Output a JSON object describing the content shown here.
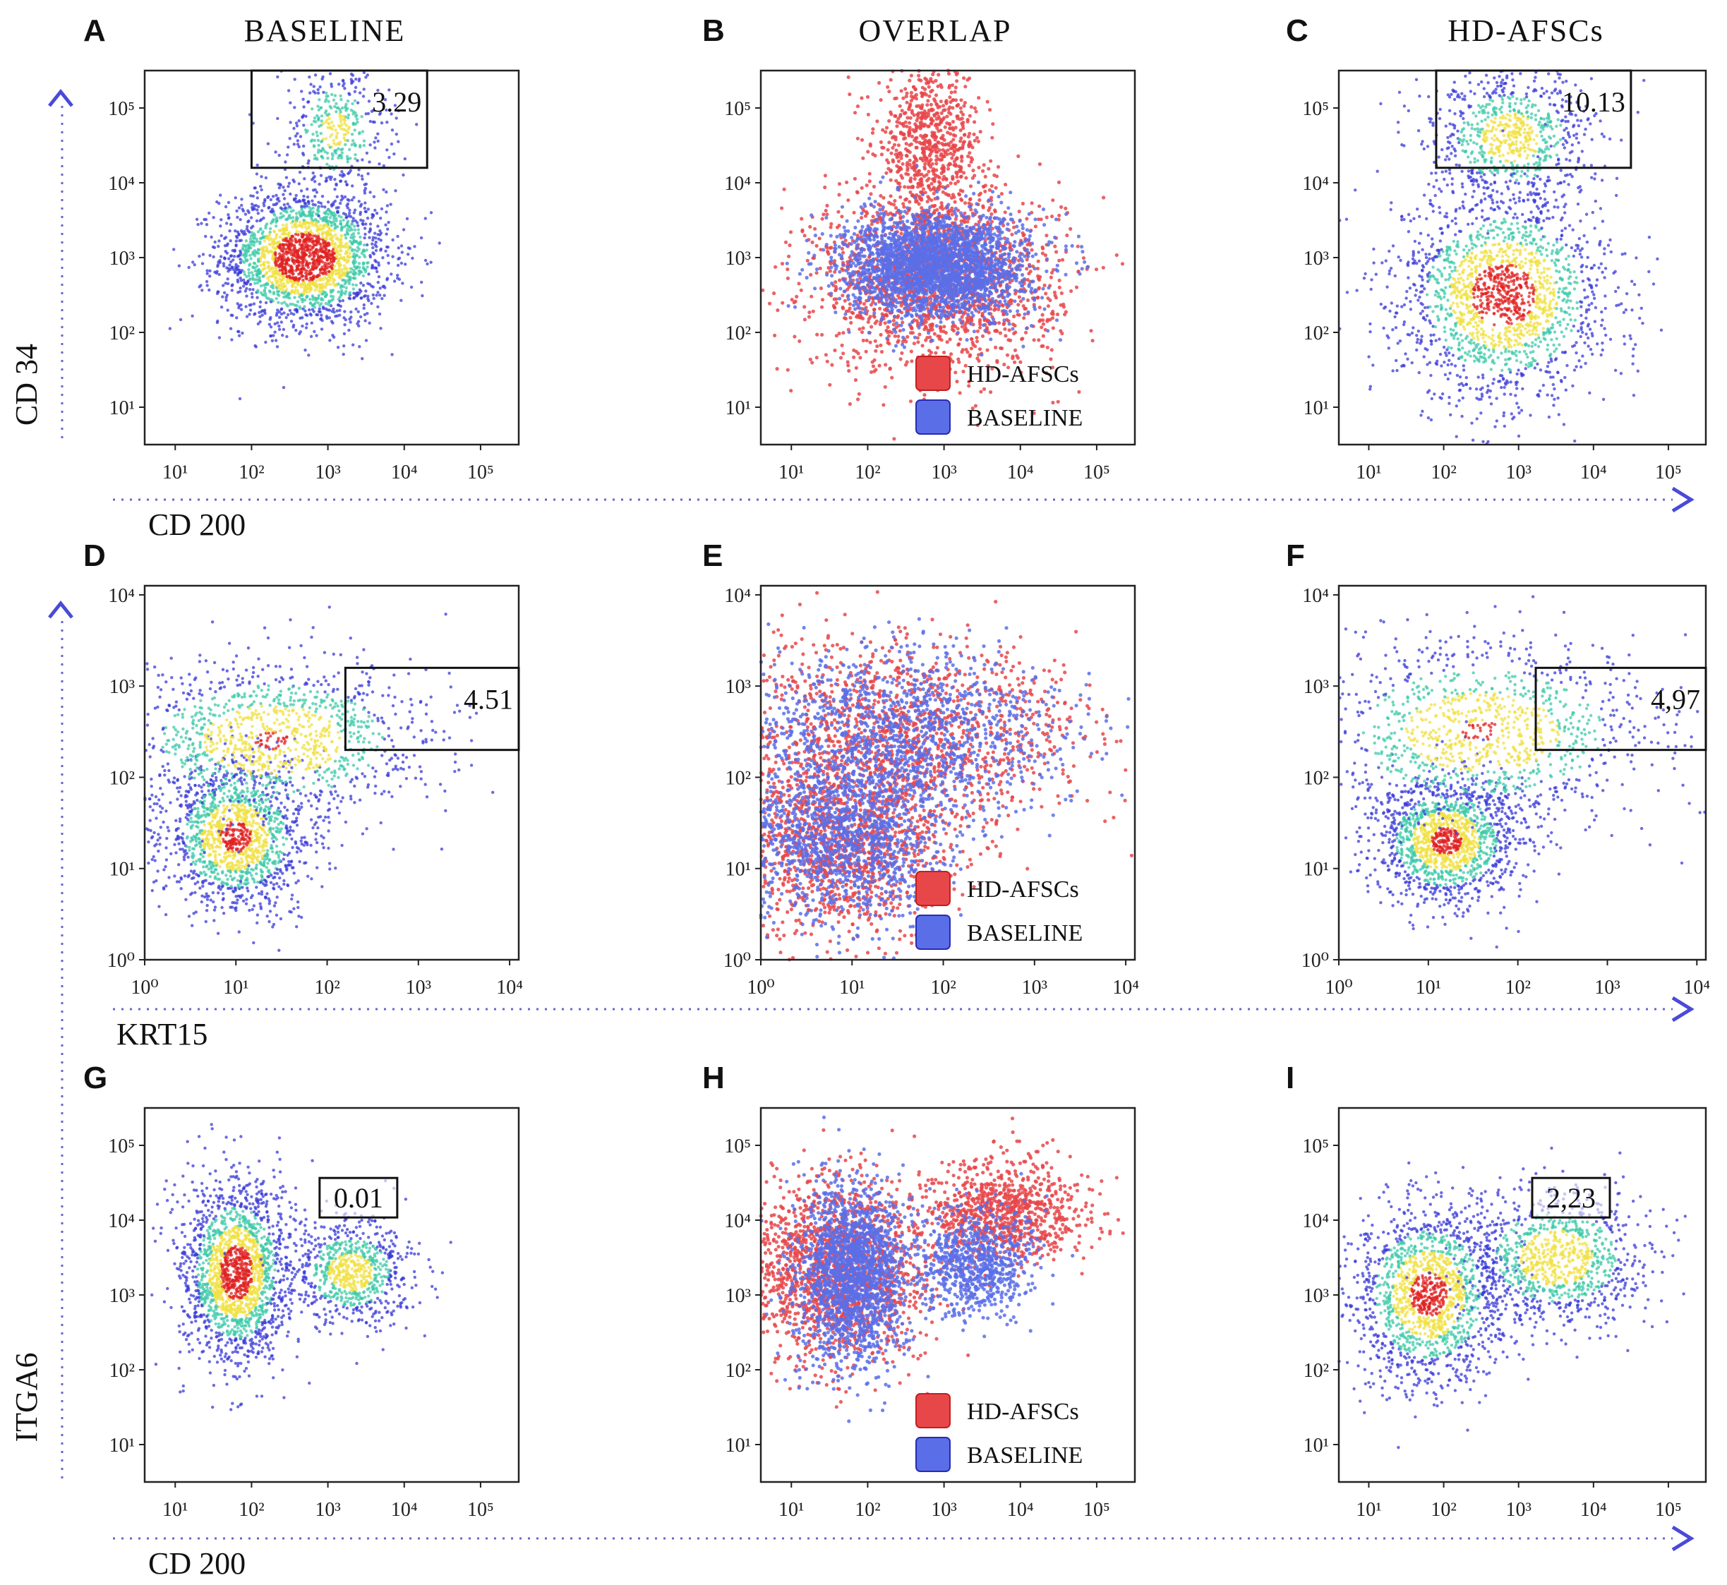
{
  "columns": [
    "BASELINE",
    "OVERLAP",
    "HD-AFSCs"
  ],
  "legend": [
    {
      "label": "HD-AFSCs",
      "color": "#e8474a"
    },
    {
      "label": "BASELINE",
      "color": "#5a6ee8"
    }
  ],
  "colors": {
    "guide": "#4a4ad8",
    "baseline_cells": "#5a6ee8",
    "hdafsc_cells": "#e8474a",
    "density_low": "#3a3ad8",
    "density_mid": "#3ec9a8",
    "density_high": "#f0e040",
    "density_peak": "#e02020"
  },
  "chart_data": [
    {
      "panel": "A",
      "type": "scatter",
      "title": "BASELINE",
      "row": 1,
      "col": 1,
      "xlabel": "CD 200",
      "ylabel": "CD 34",
      "xlim": [
        0.6,
        5.5
      ],
      "ylim": [
        0.5,
        5.5
      ],
      "log_scale": true,
      "x_ticks": [
        1,
        2,
        3,
        4,
        5
      ],
      "y_ticks": [
        1,
        2,
        3,
        4,
        5
      ],
      "gate": {
        "xrange": [
          2.0,
          4.3
        ],
        "yrange": [
          4.2,
          5.6
        ],
        "value": "3.29",
        "style": "box"
      },
      "population": "baseline",
      "clusters": [
        {
          "cx": 2.7,
          "cy": 3.0,
          "sx": 0.55,
          "sy": 0.45,
          "weight": 0.85
        },
        {
          "cx": 3.1,
          "cy": 4.7,
          "sx": 0.35,
          "sy": 0.45,
          "weight": 0.15
        }
      ]
    },
    {
      "panel": "B",
      "type": "scatter",
      "title": "OVERLAP",
      "row": 1,
      "col": 2,
      "xlabel": "CD 200",
      "ylabel": "CD 34",
      "xlim": [
        0.6,
        5.5
      ],
      "ylim": [
        0.5,
        5.5
      ],
      "log_scale": true,
      "x_ticks": [
        1,
        2,
        3,
        4,
        5
      ],
      "y_ticks": [
        1,
        2,
        3,
        4,
        5
      ],
      "population": "overlap",
      "show_legend": true,
      "clusters": [
        {
          "cx": 2.8,
          "cy": 4.5,
          "sx": 0.35,
          "sy": 0.55,
          "weight": 0.3,
          "series": "HD-AFSCs"
        },
        {
          "cx": 2.9,
          "cy": 2.7,
          "sx": 0.8,
          "sy": 0.6,
          "weight": 0.7,
          "series": "HD-AFSCs"
        },
        {
          "cx": 2.9,
          "cy": 2.9,
          "sx": 0.6,
          "sy": 0.35,
          "weight": 1.0,
          "series": "BASELINE"
        }
      ]
    },
    {
      "panel": "C",
      "type": "scatter",
      "title": "HD-AFSCs",
      "row": 1,
      "col": 3,
      "xlabel": "CD 200",
      "ylabel": "CD 34",
      "xlim": [
        0.6,
        5.5
      ],
      "ylim": [
        0.5,
        5.5
      ],
      "log_scale": true,
      "x_ticks": [
        1,
        2,
        3,
        4,
        5
      ],
      "y_ticks": [
        1,
        2,
        3,
        4,
        5
      ],
      "gate": {
        "xrange": [
          1.9,
          4.5
        ],
        "yrange": [
          4.2,
          5.6
        ],
        "value": "10.13",
        "style": "box"
      },
      "population": "hdafsc",
      "clusters": [
        {
          "cx": 2.9,
          "cy": 4.6,
          "sx": 0.55,
          "sy": 0.45,
          "weight": 0.3
        },
        {
          "cx": 2.8,
          "cy": 2.5,
          "sx": 0.7,
          "sy": 0.7,
          "weight": 0.7
        }
      ]
    },
    {
      "panel": "D",
      "type": "scatter",
      "row": 2,
      "col": 1,
      "xlabel": "KRT15",
      "ylabel": "",
      "xlim": [
        0,
        4.1
      ],
      "ylim": [
        0,
        4.1
      ],
      "log_scale": true,
      "x_ticks": [
        0,
        1,
        2,
        3,
        4
      ],
      "y_ticks": [
        0,
        1,
        2,
        3,
        4
      ],
      "gate": {
        "xrange": [
          2.2,
          4.1
        ],
        "yrange": [
          2.3,
          3.2
        ],
        "value": "4.51",
        "style": "box"
      },
      "population": "baseline",
      "clusters": [
        {
          "cx": 1.0,
          "cy": 1.35,
          "sx": 0.4,
          "sy": 0.4,
          "weight": 0.55
        },
        {
          "cx": 1.4,
          "cy": 2.4,
          "sx": 0.9,
          "sy": 0.45,
          "weight": 0.45
        }
      ]
    },
    {
      "panel": "E",
      "type": "scatter",
      "row": 2,
      "col": 2,
      "xlabel": "KRT15",
      "ylabel": "",
      "xlim": [
        0,
        4.1
      ],
      "ylim": [
        0,
        4.1
      ],
      "log_scale": true,
      "x_ticks": [
        0,
        1,
        2,
        3,
        4
      ],
      "y_ticks": [
        0,
        1,
        2,
        3,
        4
      ],
      "population": "overlap",
      "show_legend": true,
      "clusters": [
        {
          "cx": 1.6,
          "cy": 2.5,
          "sx": 1.0,
          "sy": 0.5,
          "weight": 0.5,
          "series": "HD-AFSCs"
        },
        {
          "cx": 0.9,
          "cy": 1.3,
          "sx": 0.6,
          "sy": 0.5,
          "weight": 0.5,
          "series": "HD-AFSCs"
        },
        {
          "cx": 1.5,
          "cy": 2.5,
          "sx": 0.9,
          "sy": 0.45,
          "weight": 0.5,
          "series": "BASELINE"
        },
        {
          "cx": 0.9,
          "cy": 1.3,
          "sx": 0.55,
          "sy": 0.45,
          "weight": 0.5,
          "series": "BASELINE"
        }
      ]
    },
    {
      "panel": "F",
      "type": "scatter",
      "row": 2,
      "col": 3,
      "xlabel": "KRT15",
      "ylabel": "",
      "xlim": [
        0,
        4.1
      ],
      "ylim": [
        0,
        4.1
      ],
      "log_scale": true,
      "x_ticks": [
        0,
        1,
        2,
        3,
        4
      ],
      "y_ticks": [
        0,
        1,
        2,
        3,
        4
      ],
      "gate": {
        "xrange": [
          2.2,
          4.1
        ],
        "yrange": [
          2.3,
          3.2
        ],
        "value": "4,97",
        "style": "box"
      },
      "population": "hdafsc",
      "clusters": [
        {
          "cx": 1.2,
          "cy": 1.3,
          "sx": 0.4,
          "sy": 0.35,
          "weight": 0.55
        },
        {
          "cx": 1.6,
          "cy": 2.5,
          "sx": 1.0,
          "sy": 0.5,
          "weight": 0.45
        }
      ]
    },
    {
      "panel": "G",
      "type": "scatter",
      "row": 3,
      "col": 1,
      "xlabel": "CD 200",
      "ylabel": "ITGA6",
      "xlim": [
        0.6,
        5.5
      ],
      "ylim": [
        0.5,
        5.5
      ],
      "log_scale": true,
      "x_ticks": [
        1,
        2,
        3,
        4,
        5
      ],
      "y_ticks": [
        1,
        2,
        3,
        4,
        5
      ],
      "gate": {
        "value": "0.01",
        "style": "label",
        "x": 3.4,
        "y": 4.3
      },
      "population": "baseline",
      "clusters": [
        {
          "cx": 1.8,
          "cy": 3.3,
          "sx": 0.35,
          "sy": 0.6,
          "weight": 0.7
        },
        {
          "cx": 3.3,
          "cy": 3.3,
          "sx": 0.4,
          "sy": 0.35,
          "weight": 0.3
        }
      ]
    },
    {
      "panel": "H",
      "type": "scatter",
      "row": 3,
      "col": 2,
      "xlabel": "CD 200",
      "ylabel": "ITGA6",
      "xlim": [
        0.6,
        5.5
      ],
      "ylim": [
        0.5,
        5.5
      ],
      "log_scale": true,
      "x_ticks": [
        1,
        2,
        3,
        4,
        5
      ],
      "y_ticks": [
        1,
        2,
        3,
        4,
        5
      ],
      "population": "overlap",
      "show_legend": true,
      "clusters": [
        {
          "cx": 3.8,
          "cy": 4.1,
          "sx": 0.5,
          "sy": 0.35,
          "weight": 0.35,
          "series": "HD-AFSCs"
        },
        {
          "cx": 1.6,
          "cy": 3.3,
          "sx": 0.6,
          "sy": 0.6,
          "weight": 0.65,
          "series": "HD-AFSCs"
        },
        {
          "cx": 1.8,
          "cy": 3.3,
          "sx": 0.35,
          "sy": 0.6,
          "weight": 0.7,
          "series": "BASELINE"
        },
        {
          "cx": 3.4,
          "cy": 3.4,
          "sx": 0.4,
          "sy": 0.35,
          "weight": 0.3,
          "series": "BASELINE"
        }
      ]
    },
    {
      "panel": "I",
      "type": "scatter",
      "row": 3,
      "col": 3,
      "xlabel": "CD 200",
      "ylabel": "ITGA6",
      "xlim": [
        0.6,
        5.5
      ],
      "ylim": [
        0.5,
        5.5
      ],
      "log_scale": true,
      "x_ticks": [
        1,
        2,
        3,
        4,
        5
      ],
      "y_ticks": [
        1,
        2,
        3,
        4,
        5
      ],
      "gate": {
        "value": "2,23",
        "style": "label",
        "x": 3.7,
        "y": 4.3
      },
      "population": "hdafsc",
      "clusters": [
        {
          "cx": 1.8,
          "cy": 3.0,
          "sx": 0.5,
          "sy": 0.6,
          "weight": 0.6
        },
        {
          "cx": 3.5,
          "cy": 3.5,
          "sx": 0.6,
          "sy": 0.45,
          "weight": 0.4
        }
      ]
    }
  ],
  "axis_names": {
    "row1_y": "CD 34",
    "row1_x": "CD 200",
    "row2_x": "KRT15",
    "row3_y": "ITGA6",
    "row3_x": "CD 200"
  }
}
